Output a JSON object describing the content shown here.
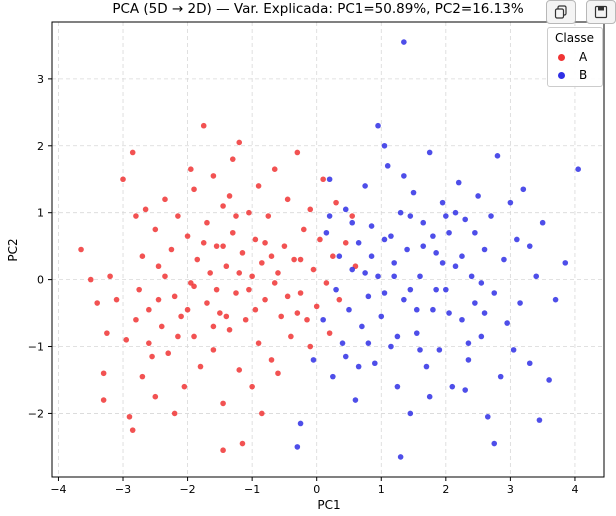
{
  "chart_data": {
    "type": "scatter",
    "title": "PCA (5D → 2D) — Var. Explicada: PC1=50.89%, PC2=16.13%",
    "xlabel": "PC1",
    "ylabel": "PC2",
    "xlim": [
      -4.1,
      4.45
    ],
    "ylim": [
      -2.95,
      3.85
    ],
    "xticks": [
      "−4",
      "−3",
      "−2",
      "−1",
      "0",
      "1",
      "2",
      "3",
      "4"
    ],
    "yticks": [
      "−2",
      "−1",
      "0",
      "1",
      "2",
      "3"
    ],
    "grid": true,
    "legend": {
      "title": "Classe",
      "placement": "top-right"
    },
    "series": [
      {
        "name": "A",
        "color": "#f03434",
        "points": [
          [
            -3.65,
            0.45
          ],
          [
            -3.4,
            -0.35
          ],
          [
            -3.3,
            -1.8
          ],
          [
            -3.3,
            -1.4
          ],
          [
            -3.25,
            -0.8
          ],
          [
            -3.2,
            0.05
          ],
          [
            -3.1,
            -0.3
          ],
          [
            -3.0,
            1.5
          ],
          [
            -2.95,
            -0.9
          ],
          [
            -2.9,
            -2.05
          ],
          [
            -2.85,
            -2.25
          ],
          [
            -2.85,
            1.9
          ],
          [
            -2.8,
            -0.6
          ],
          [
            -2.75,
            -0.15
          ],
          [
            -2.7,
            0.35
          ],
          [
            -2.7,
            -1.45
          ],
          [
            -2.65,
            1.05
          ],
          [
            -2.6,
            -0.45
          ],
          [
            -2.55,
            -1.15
          ],
          [
            -2.5,
            0.75
          ],
          [
            -2.5,
            -1.75
          ],
          [
            -2.45,
            0.2
          ],
          [
            -2.4,
            -0.7
          ],
          [
            -2.35,
            1.2
          ],
          [
            -2.3,
            -1.1
          ],
          [
            -2.25,
            0.45
          ],
          [
            -2.2,
            -0.25
          ],
          [
            -2.2,
            -2.0
          ],
          [
            -2.15,
            0.95
          ],
          [
            -2.1,
            -0.55
          ],
          [
            -2.05,
            -1.6
          ],
          [
            -2.0,
            0.65
          ],
          [
            -1.95,
            -0.05
          ],
          [
            -1.9,
            1.35
          ],
          [
            -1.9,
            -0.85
          ],
          [
            -1.85,
            0.3
          ],
          [
            -1.8,
            -1.3
          ],
          [
            -1.75,
            2.3
          ],
          [
            -1.7,
            0.85
          ],
          [
            -1.7,
            -0.35
          ],
          [
            -1.65,
            0.1
          ],
          [
            -1.6,
            1.55
          ],
          [
            -1.6,
            -1.05
          ],
          [
            -1.55,
            0.5
          ],
          [
            -1.5,
            -0.5
          ],
          [
            -1.45,
            1.1
          ],
          [
            -1.45,
            -1.85
          ],
          [
            -1.4,
            0.2
          ],
          [
            -1.35,
            -0.75
          ],
          [
            -1.3,
            0.7
          ],
          [
            -1.3,
            1.8
          ],
          [
            -1.25,
            -0.2
          ],
          [
            -1.2,
            -1.35
          ],
          [
            -1.2,
            2.05
          ],
          [
            -1.15,
            0.4
          ],
          [
            -1.1,
            -0.6
          ],
          [
            -1.05,
            1.0
          ],
          [
            -1.0,
            -1.6
          ],
          [
            -1.0,
            0.05
          ],
          [
            -0.95,
            0.6
          ],
          [
            -0.9,
            -0.95
          ],
          [
            -0.9,
            1.4
          ],
          [
            -0.85,
            0.25
          ],
          [
            -0.8,
            -0.3
          ],
          [
            -0.75,
            0.95
          ],
          [
            -0.7,
            -1.2
          ],
          [
            -0.65,
            1.65
          ],
          [
            -0.6,
            0.1
          ],
          [
            -0.55,
            -0.55
          ],
          [
            -0.5,
            0.5
          ],
          [
            -0.45,
            1.2
          ],
          [
            -0.4,
            -0.85
          ],
          [
            -0.35,
            0.3
          ],
          [
            -0.3,
            1.9
          ],
          [
            -0.25,
            -0.2
          ],
          [
            -0.2,
            0.75
          ],
          [
            -0.15,
            -0.6
          ],
          [
            -0.1,
            1.05
          ],
          [
            -0.05,
            0.15
          ],
          [
            0.0,
            -0.4
          ],
          [
            0.05,
            0.6
          ],
          [
            0.1,
            1.5
          ],
          [
            0.15,
            -0.05
          ],
          [
            0.2,
            -0.8
          ],
          [
            0.25,
            0.35
          ],
          [
            0.3,
            1.15
          ],
          [
            0.35,
            -0.3
          ],
          [
            0.45,
            0.55
          ],
          [
            0.55,
            0.95
          ],
          [
            0.6,
            0.2
          ],
          [
            -1.9,
            -0.1
          ],
          [
            -2.15,
            -0.85
          ],
          [
            -1.55,
            -0.15
          ],
          [
            -1.25,
            0.95
          ],
          [
            -0.95,
            -0.45
          ],
          [
            -0.65,
            -0.05
          ],
          [
            -1.75,
            0.55
          ],
          [
            -2.35,
            0.05
          ],
          [
            -1.05,
            -0.15
          ],
          [
            -0.45,
            -0.25
          ],
          [
            -2.6,
            -0.95
          ],
          [
            -1.4,
            -0.55
          ],
          [
            -0.8,
            0.55
          ],
          [
            -1.6,
            -0.7
          ],
          [
            -0.3,
            -0.5
          ],
          [
            -1.2,
            0.1
          ],
          [
            -2.0,
            -0.45
          ],
          [
            -0.7,
            0.35
          ],
          [
            -1.45,
            0.5
          ],
          [
            -0.25,
            0.3
          ],
          [
            -1.15,
            -2.45
          ],
          [
            -1.45,
            -2.55
          ],
          [
            -1.95,
            1.65
          ],
          [
            -0.6,
            -1.4
          ],
          [
            -2.8,
            0.95
          ],
          [
            -1.35,
            1.25
          ],
          [
            -0.1,
            -1.0
          ],
          [
            -3.5,
            0.0
          ],
          [
            -2.45,
            -0.3
          ],
          [
            -0.85,
            -2.0
          ]
        ]
      },
      {
        "name": "B",
        "color": "#2f2fe5",
        "points": [
          [
            -0.3,
            -2.5
          ],
          [
            -0.25,
            -2.15
          ],
          [
            -0.05,
            -1.2
          ],
          [
            0.1,
            -0.6
          ],
          [
            0.15,
            0.7
          ],
          [
            0.2,
            1.5
          ],
          [
            0.25,
            -1.45
          ],
          [
            0.3,
            -0.15
          ],
          [
            0.35,
            0.35
          ],
          [
            0.4,
            -0.95
          ],
          [
            0.45,
            1.05
          ],
          [
            0.5,
            -0.45
          ],
          [
            0.55,
            0.15
          ],
          [
            0.6,
            -1.8
          ],
          [
            0.65,
            0.55
          ],
          [
            0.7,
            -0.7
          ],
          [
            0.75,
            1.4
          ],
          [
            0.8,
            -0.25
          ],
          [
            0.85,
            0.8
          ],
          [
            0.9,
            -1.25
          ],
          [
            0.95,
            0.05
          ],
          [
            0.95,
            2.3
          ],
          [
            1.0,
            -0.55
          ],
          [
            1.05,
            0.6
          ],
          [
            1.1,
            1.7
          ],
          [
            1.15,
            -1.0
          ],
          [
            1.2,
            0.25
          ],
          [
            1.25,
            -1.6
          ],
          [
            1.3,
            1.0
          ],
          [
            1.35,
            -0.3
          ],
          [
            1.4,
            0.45
          ],
          [
            1.45,
            -2.0
          ],
          [
            1.5,
            1.3
          ],
          [
            1.55,
            -0.8
          ],
          [
            1.6,
            0.05
          ],
          [
            1.65,
            0.85
          ],
          [
            1.7,
            -1.3
          ],
          [
            1.75,
            1.9
          ],
          [
            1.8,
            -0.45
          ],
          [
            1.85,
            0.4
          ],
          [
            1.9,
            -1.05
          ],
          [
            1.95,
            1.15
          ],
          [
            2.0,
            -0.15
          ],
          [
            2.05,
            0.7
          ],
          [
            2.1,
            -1.6
          ],
          [
            2.15,
            0.2
          ],
          [
            2.2,
            1.45
          ],
          [
            2.25,
            -0.6
          ],
          [
            2.3,
            0.9
          ],
          [
            2.35,
            -1.2
          ],
          [
            2.4,
            0.05
          ],
          [
            2.45,
            -0.35
          ],
          [
            2.5,
            1.25
          ],
          [
            2.55,
            -0.85
          ],
          [
            2.6,
            0.45
          ],
          [
            2.65,
            -2.05
          ],
          [
            2.7,
            0.95
          ],
          [
            2.75,
            -0.2
          ],
          [
            2.8,
            1.85
          ],
          [
            2.85,
            -1.45
          ],
          [
            2.9,
            0.3
          ],
          [
            2.95,
            -0.65
          ],
          [
            3.0,
            1.15
          ],
          [
            3.05,
            -1.05
          ],
          [
            3.1,
            0.6
          ],
          [
            3.15,
            -0.35
          ],
          [
            3.2,
            1.35
          ],
          [
            3.3,
            -1.25
          ],
          [
            3.4,
            0.05
          ],
          [
            3.5,
            0.85
          ],
          [
            3.6,
            -1.5
          ],
          [
            3.7,
            -0.3
          ],
          [
            3.85,
            0.25
          ],
          [
            4.05,
            1.65
          ],
          [
            3.45,
            -2.1
          ],
          [
            0.65,
            -1.3
          ],
          [
            1.05,
            -0.2
          ],
          [
            1.45,
            0.95
          ],
          [
            1.85,
            -0.15
          ],
          [
            2.25,
            0.35
          ],
          [
            0.85,
            0.35
          ],
          [
            1.25,
            -0.85
          ],
          [
            1.65,
            0.5
          ],
          [
            2.05,
            -0.5
          ],
          [
            2.45,
            0.7
          ],
          [
            1.15,
            0.65
          ],
          [
            1.55,
            -0.45
          ],
          [
            1.95,
            0.25
          ],
          [
            2.35,
            -0.95
          ],
          [
            0.75,
            0.1
          ],
          [
            1.35,
            1.55
          ],
          [
            1.75,
            -1.75
          ],
          [
            2.15,
            1.0
          ],
          [
            2.55,
            -0.05
          ],
          [
            0.45,
            -1.15
          ],
          [
            1.05,
            2.0
          ],
          [
            2.75,
            -2.45
          ],
          [
            3.3,
            0.5
          ],
          [
            1.3,
            -2.65
          ],
          [
            1.35,
            3.55
          ],
          [
            0.2,
            0.95
          ],
          [
            0.8,
            -0.95
          ],
          [
            1.6,
            -1.05
          ],
          [
            2.0,
            0.95
          ],
          [
            2.6,
            -0.5
          ],
          [
            1.2,
            0.05
          ],
          [
            1.8,
            0.65
          ],
          [
            2.3,
            -1.65
          ],
          [
            0.55,
            0.85
          ],
          [
            1.45,
            -0.15
          ]
        ]
      }
    ]
  },
  "toolbar": {
    "copy_icon": "copy-icon",
    "save_icon": "save-icon"
  }
}
